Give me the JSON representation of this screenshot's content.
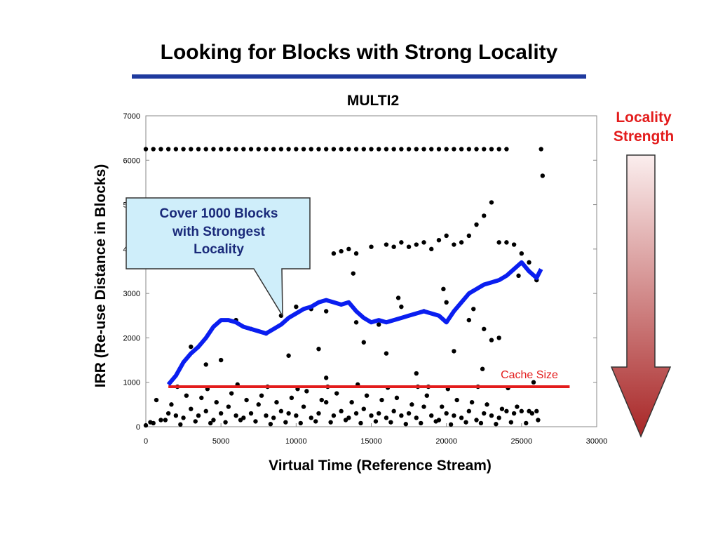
{
  "slide": {
    "title": "Looking for Blocks with Strong Locality"
  },
  "callout": {
    "line1": "Cover 1000 Blocks",
    "line2": "with Strongest",
    "line3": "Locality"
  },
  "locality_arrow": {
    "line1": "Locality",
    "line2": "Strength",
    "color_top": "#fbeeee",
    "color_bottom": "#a82626"
  },
  "colors": {
    "title_rule": "#1f3a9e",
    "coverage_line": "#0a1ef0",
    "cache_line": "#e31c1c",
    "points": "#000000",
    "callout_fill": "#cfeefa"
  },
  "chart_data": {
    "type": "scatter",
    "title": "MULTI2",
    "xlabel": "Virtual Time (Reference Stream)",
    "ylabel": "IRR (Re-use Distance in Blocks)",
    "xlim": [
      0,
      30000
    ],
    "ylim": [
      0,
      7000
    ],
    "xticks": [
      "0",
      "5000",
      "10000",
      "15000",
      "20000",
      "25000",
      "30000"
    ],
    "yticks": [
      "0",
      "1000",
      "2000",
      "3000",
      "4000",
      "5000",
      "6000",
      "7000"
    ],
    "grid": false,
    "series": [
      {
        "name": "Cache Size",
        "kind": "hline",
        "y": 900,
        "x_range": [
          1500,
          28200
        ],
        "label": "Cache Size",
        "color": "#e31c1c"
      },
      {
        "name": "coverage",
        "kind": "line",
        "color": "#0a1ef0",
        "x": [
          1500,
          2000,
          2500,
          3000,
          3500,
          4000,
          4500,
          5000,
          5500,
          6000,
          6500,
          7000,
          7500,
          8000,
          8500,
          9000,
          9500,
          10000,
          10500,
          11000,
          11500,
          12000,
          12500,
          13000,
          13500,
          14000,
          14500,
          15000,
          15500,
          16000,
          16500,
          17000,
          17500,
          18000,
          18500,
          19000,
          19500,
          20000,
          20500,
          21000,
          21500,
          22000,
          22500,
          23000,
          23500,
          24000,
          24500,
          25000,
          25500,
          26000,
          26300
        ],
        "y": [
          950,
          1150,
          1450,
          1650,
          1800,
          2000,
          2250,
          2400,
          2400,
          2350,
          2250,
          2200,
          2150,
          2100,
          2200,
          2300,
          2450,
          2550,
          2650,
          2700,
          2800,
          2850,
          2800,
          2750,
          2800,
          2600,
          2450,
          2350,
          2400,
          2350,
          2400,
          2450,
          2500,
          2550,
          2600,
          2550,
          2500,
          2350,
          2600,
          2800,
          3000,
          3100,
          3200,
          3250,
          3300,
          3400,
          3550,
          3700,
          3500,
          3350,
          3550
        ]
      },
      {
        "name": "top-band",
        "kind": "scatter",
        "x": [
          0,
          500,
          1000,
          1500,
          2000,
          2500,
          3000,
          3500,
          4000,
          4500,
          5000,
          5500,
          6000,
          6500,
          7000,
          7500,
          8000,
          8500,
          9000,
          9500,
          10000,
          10500,
          11000,
          11500,
          12000,
          12500,
          13000,
          13500,
          14000,
          14500,
          15000,
          15500,
          16000,
          16500,
          17000,
          17500,
          18000,
          18500,
          19000,
          19500,
          20000,
          20500,
          21000,
          21500,
          22000,
          22500,
          23000,
          23500,
          24000,
          26300
        ],
        "y": [
          6250,
          6250,
          6250,
          6250,
          6250,
          6250,
          6250,
          6250,
          6250,
          6250,
          6250,
          6250,
          6250,
          6250,
          6250,
          6250,
          6250,
          6250,
          6250,
          6250,
          6250,
          6250,
          6250,
          6250,
          6250,
          6250,
          6250,
          6250,
          6250,
          6250,
          6250,
          6250,
          6250,
          6250,
          6250,
          6250,
          6250,
          6250,
          6250,
          6250,
          6250,
          6250,
          6250,
          6250,
          6250,
          6250,
          6250,
          6250,
          6250,
          6250
        ]
      },
      {
        "name": "mid-scatter",
        "kind": "scatter",
        "x": [
          12500,
          13000,
          13500,
          14000,
          15000,
          16000,
          16500,
          17000,
          17500,
          18000,
          18500,
          19000,
          19500,
          20000,
          20500,
          21000,
          21500,
          22000,
          22500,
          23000,
          23500,
          24000,
          24500,
          25000,
          25500,
          26000,
          26400,
          6000,
          7000,
          8000,
          9000,
          10000,
          11000,
          12000,
          14000,
          15500,
          17000,
          18500,
          20000,
          21500,
          22500,
          23500,
          13800,
          16800,
          19800,
          21800,
          24800,
          3000,
          4000,
          5000,
          9500,
          11500,
          14500,
          16000,
          18000,
          20500,
          23000,
          12000,
          18800,
          22400,
          25800
        ],
        "y": [
          3900,
          3950,
          4000,
          3900,
          4050,
          4100,
          4050,
          4150,
          4050,
          4100,
          4150,
          4000,
          4200,
          4300,
          4100,
          4150,
          4300,
          4550,
          4750,
          5050,
          4150,
          4150,
          4100,
          3900,
          3700,
          3300,
          5650,
          2400,
          2200,
          2100,
          2500,
          2700,
          2650,
          2600,
          2350,
          2300,
          2700,
          2600,
          2800,
          2400,
          2200,
          2000,
          3450,
          2900,
          3100,
          2650,
          3400,
          1800,
          1400,
          1500,
          1600,
          1750,
          1900,
          1650,
          1200,
          1700,
          1950,
          1100,
          900,
          1300,
          1000
        ]
      },
      {
        "name": "low-band",
        "kind": "scatter",
        "x": [
          0,
          500,
          1000,
          1500,
          2000,
          2500,
          3000,
          3500,
          4000,
          4500,
          5000,
          5500,
          6000,
          6500,
          7000,
          7500,
          8000,
          8500,
          9000,
          9500,
          10000,
          10500,
          11000,
          11500,
          12000,
          12500,
          13000,
          13500,
          14000,
          14500,
          15000,
          15500,
          16000,
          16500,
          17000,
          17500,
          18000,
          18500,
          19000,
          19500,
          20000,
          20500,
          21000,
          21500,
          22000,
          22500,
          23000,
          23500,
          24000,
          24500,
          25000,
          25500,
          26000,
          700,
          1700,
          2700,
          3700,
          4700,
          5700,
          6700,
          7700,
          8700,
          9700,
          10700,
          11700,
          12700,
          13700,
          14700,
          15700,
          16700,
          17700,
          18700,
          19700,
          20700,
          21700,
          22700,
          23700,
          24700,
          25700,
          300,
          1300,
          2300,
          3300,
          4300,
          5300,
          6300,
          7300,
          8300,
          9300,
          10300,
          11300,
          12300,
          13300,
          14300,
          15300,
          16300,
          17300,
          18300,
          19300,
          20300,
          21300,
          22300,
          23300,
          24300,
          25300,
          2100,
          4100,
          6100,
          8100,
          10100,
          12100,
          14100,
          16100,
          18100,
          20100,
          22100,
          24100,
          26100
        ],
        "y": [
          30,
          80,
          150,
          300,
          250,
          200,
          400,
          250,
          350,
          150,
          300,
          450,
          250,
          200,
          300,
          500,
          250,
          200,
          350,
          300,
          250,
          450,
          200,
          300,
          550,
          250,
          350,
          200,
          300,
          400,
          250,
          300,
          200,
          350,
          250,
          300,
          200,
          450,
          250,
          150,
          300,
          250,
          200,
          350,
          150,
          300,
          250,
          200,
          350,
          300,
          350,
          350,
          350,
          600,
          500,
          700,
          650,
          550,
          750,
          600,
          700,
          550,
          650,
          800,
          600,
          750,
          550,
          700,
          600,
          650,
          500,
          700,
          450,
          600,
          550,
          500,
          400,
          450,
          300,
          100,
          150,
          50,
          120,
          80,
          100,
          150,
          120,
          60,
          100,
          80,
          120,
          100,
          150,
          80,
          120,
          100,
          60,
          80,
          120,
          50,
          100,
          80,
          60,
          100,
          80,
          900,
          850,
          950,
          900,
          850,
          900,
          950,
          880,
          900,
          850,
          900,
          870,
          150
        ]
      }
    ]
  }
}
